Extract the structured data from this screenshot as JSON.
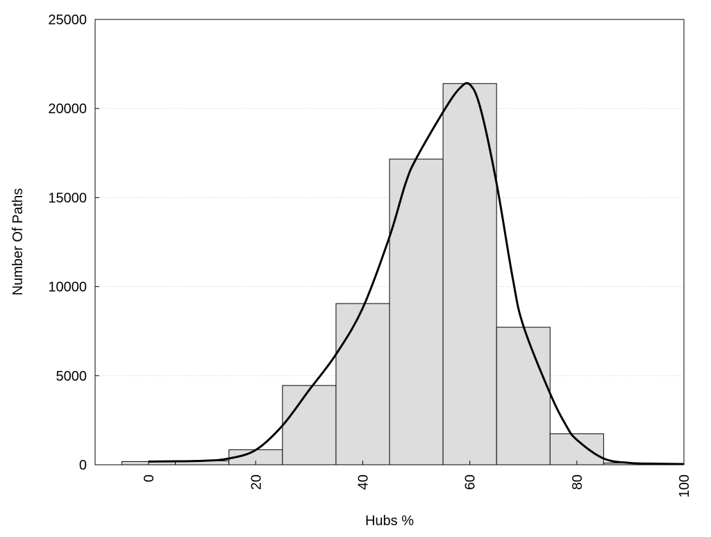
{
  "chart_data": {
    "type": "bar",
    "title": "",
    "xlabel": "Hubs %",
    "ylabel": "Number Of Paths",
    "xlim": [
      -10,
      100
    ],
    "ylim": [
      0,
      25000
    ],
    "xticks": [
      0,
      20,
      40,
      60,
      80,
      100
    ],
    "xtick_labels": [
      "0",
      "20",
      "40",
      "60",
      "80",
      "100"
    ],
    "yticks": [
      0,
      5000,
      10000,
      15000,
      20000,
      25000
    ],
    "ytick_labels": [
      "0",
      "5000",
      "10000",
      "15000",
      "20000",
      "25000"
    ],
    "grid": "horizontal dotted",
    "bar_width": 10,
    "bar_color": "#dddddd",
    "bars": {
      "x": [
        0,
        10,
        20,
        30,
        40,
        50,
        60,
        70,
        80,
        90
      ],
      "values": [
        180,
        220,
        845,
        4450,
        9050,
        17160,
        21400,
        7720,
        1740,
        100
      ]
    },
    "curve": {
      "type": "line",
      "color": "#000000",
      "x": [
        0,
        10,
        15,
        20,
        25,
        30,
        35,
        40,
        45,
        48,
        50,
        55,
        58,
        60,
        62,
        65,
        68,
        70,
        75,
        78,
        80,
        85,
        90,
        95,
        100
      ],
      "y": [
        180,
        220,
        350,
        830,
        2200,
        4200,
        6200,
        8800,
        12800,
        15800,
        17200,
        19800,
        21100,
        21350,
        20000,
        15800,
        10500,
        7800,
        4000,
        2200,
        1400,
        350,
        100,
        60,
        40
      ]
    }
  }
}
